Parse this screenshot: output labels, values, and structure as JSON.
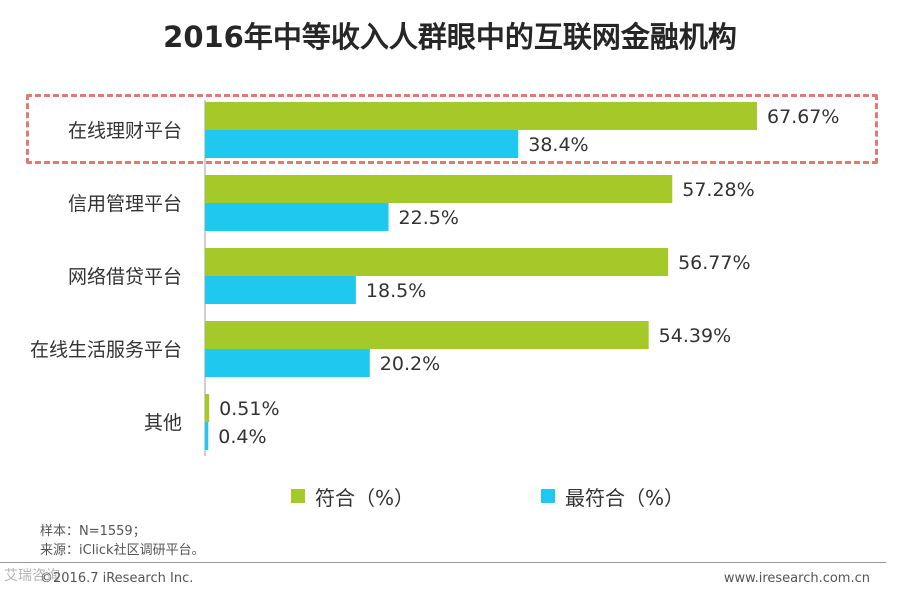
{
  "chart_data": {
    "type": "bar",
    "orientation": "horizontal",
    "title": "2016年中等收入人群眼中的互联网金融机构",
    "categories": [
      "在线理财平台",
      "信用管理平台",
      "网络借贷平台",
      "在线生活服务平台",
      "其他"
    ],
    "series": [
      {
        "name": "符合（%）",
        "values": [
          67.67,
          57.28,
          56.77,
          54.39,
          0.51
        ],
        "labels": [
          "67.67%",
          "57.28%",
          "56.77%",
          "54.39%",
          "0.51%"
        ],
        "color": "#a5c929"
      },
      {
        "name": "最符合（%）",
        "values": [
          38.4,
          22.5,
          18.5,
          20.2,
          0.4
        ],
        "labels": [
          "38.4%",
          "22.5%",
          "18.5%",
          "20.2%",
          "0.4%"
        ],
        "color": "#1ec8ef"
      }
    ],
    "xlim": [
      0,
      70
    ],
    "highlighted_category": "在线理财平台",
    "xlabel": "",
    "ylabel": "",
    "legend_position": "bottom"
  },
  "footnotes": {
    "sample": "样本：N=1559；",
    "source": "来源：iClick社区调研平台。"
  },
  "footer": {
    "copyright": "©2016.7 iResearch Inc.",
    "website": "www.iresearch.com.cn",
    "watermark": "艾瑞咨询"
  }
}
